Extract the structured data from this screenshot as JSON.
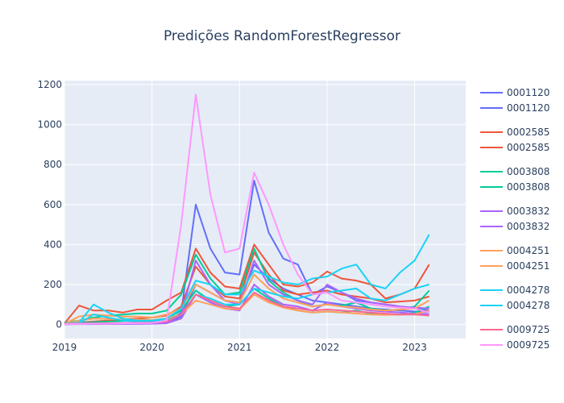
{
  "chart_data": {
    "type": "line",
    "title": "Predições RandomForestRegressor",
    "xlabel": "",
    "ylabel": "",
    "x_ticks": [
      "2019",
      "2020",
      "2021",
      "2022",
      "2023"
    ],
    "y_ticks": [
      0,
      200,
      400,
      600,
      800,
      1000,
      1200
    ],
    "xlim": [
      "2019-01",
      "2023-08"
    ],
    "ylim": [
      -70,
      1220
    ],
    "grid": true,
    "background": "#e5ecf6",
    "legend_position": "right",
    "x": [
      "2019-01",
      "2019-03",
      "2019-05",
      "2019-07",
      "2019-09",
      "2019-11",
      "2020-01",
      "2020-03",
      "2020-05",
      "2020-07",
      "2020-09",
      "2020-11",
      "2021-01",
      "2021-03",
      "2021-05",
      "2021-07",
      "2021-09",
      "2021-11",
      "2022-01",
      "2022-03",
      "2022-05",
      "2022-07",
      "2022-09",
      "2022-11",
      "2023-01",
      "2023-03"
    ],
    "series": [
      {
        "name": "0001120",
        "color": "#636efa",
        "values": [
          5,
          5,
          4,
          5,
          5,
          6,
          6,
          10,
          60,
          600,
          380,
          260,
          250,
          720,
          460,
          330,
          300,
          150,
          190,
          160,
          120,
          110,
          100,
          90,
          80,
          70
        ]
      },
      {
        "name": "0001120",
        "color": "#636efa",
        "values": [
          3,
          3,
          3,
          4,
          4,
          5,
          5,
          8,
          40,
          200,
          160,
          120,
          110,
          300,
          230,
          180,
          150,
          120,
          110,
          100,
          90,
          80,
          75,
          70,
          65,
          60
        ]
      },
      {
        "name": "0002585",
        "color": "#ef553b",
        "values": [
          5,
          95,
          70,
          70,
          60,
          75,
          75,
          120,
          160,
          380,
          260,
          190,
          180,
          400,
          300,
          200,
          190,
          210,
          265,
          230,
          220,
          200,
          130,
          150,
          180,
          300
        ]
      },
      {
        "name": "0002585",
        "color": "#ef553b",
        "values": [
          2,
          10,
          15,
          20,
          25,
          30,
          35,
          45,
          90,
          290,
          200,
          140,
          130,
          360,
          250,
          170,
          150,
          160,
          170,
          150,
          140,
          130,
          110,
          115,
          120,
          140
        ]
      },
      {
        "name": "0003808",
        "color": "#00cc96",
        "values": [
          10,
          20,
          35,
          45,
          50,
          55,
          55,
          70,
          150,
          350,
          230,
          150,
          160,
          380,
          220,
          160,
          120,
          90,
          100,
          95,
          110,
          80,
          70,
          75,
          90,
          170
        ]
      },
      {
        "name": "0003808",
        "color": "#00cc96",
        "values": [
          5,
          8,
          12,
          15,
          18,
          20,
          22,
          30,
          70,
          170,
          120,
          90,
          100,
          180,
          130,
          90,
          70,
          60,
          65,
          60,
          70,
          55,
          50,
          50,
          60,
          90
        ]
      },
      {
        "name": "0003832",
        "color": "#ab63fa",
        "values": [
          2,
          3,
          3,
          4,
          4,
          5,
          5,
          10,
          50,
          320,
          200,
          120,
          100,
          320,
          200,
          150,
          120,
          100,
          200,
          160,
          130,
          110,
          100,
          90,
          85,
          80
        ]
      },
      {
        "name": "0003832",
        "color": "#ab63fa",
        "values": [
          1,
          2,
          2,
          3,
          3,
          3,
          4,
          6,
          30,
          150,
          110,
          80,
          70,
          200,
          140,
          100,
          90,
          70,
          110,
          90,
          80,
          70,
          65,
          60,
          55,
          50
        ]
      },
      {
        "name": "0004251",
        "color": "#ffa15a",
        "values": [
          3,
          40,
          50,
          45,
          40,
          40,
          35,
          50,
          80,
          200,
          160,
          120,
          110,
          250,
          180,
          130,
          110,
          90,
          100,
          90,
          85,
          75,
          70,
          75,
          80,
          120
        ]
      },
      {
        "name": "0004251",
        "color": "#ffa15a",
        "values": [
          2,
          20,
          30,
          28,
          25,
          25,
          22,
          30,
          50,
          120,
          100,
          80,
          75,
          150,
          110,
          85,
          70,
          60,
          65,
          60,
          55,
          50,
          48,
          50,
          52,
          70
        ]
      },
      {
        "name": "0004278",
        "color": "#19d3f3",
        "values": [
          5,
          10,
          100,
          60,
          30,
          20,
          20,
          30,
          80,
          220,
          200,
          150,
          150,
          270,
          240,
          210,
          200,
          230,
          240,
          280,
          300,
          200,
          180,
          260,
          320,
          450
        ]
      },
      {
        "name": "0004278",
        "color": "#19d3f3",
        "values": [
          3,
          6,
          50,
          35,
          20,
          15,
          15,
          20,
          50,
          150,
          130,
          100,
          100,
          180,
          160,
          140,
          130,
          150,
          160,
          170,
          180,
          130,
          120,
          150,
          180,
          200
        ]
      },
      {
        "name": "0009725",
        "color": "#ff6692",
        "values": [
          4,
          5,
          6,
          7,
          8,
          9,
          10,
          15,
          50,
          150,
          120,
          90,
          80,
          160,
          120,
          90,
          80,
          70,
          75,
          70,
          65,
          60,
          55,
          50,
          50,
          45
        ]
      },
      {
        "name": "0009725",
        "color": "#ff97ff",
        "values": [
          2,
          3,
          4,
          5,
          6,
          7,
          8,
          20,
          500,
          1150,
          650,
          360,
          380,
          760,
          600,
          400,
          250,
          150,
          160,
          120,
          110,
          100,
          90,
          85,
          80,
          60
        ]
      }
    ]
  }
}
